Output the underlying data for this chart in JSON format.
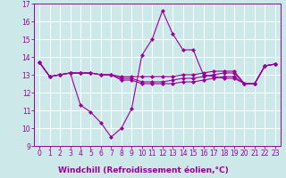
{
  "x": [
    0,
    1,
    2,
    3,
    4,
    5,
    6,
    7,
    8,
    9,
    10,
    11,
    12,
    13,
    14,
    15,
    16,
    17,
    18,
    19,
    20,
    21,
    22,
    23
  ],
  "line1": [
    13.7,
    12.9,
    13.0,
    13.1,
    11.3,
    10.9,
    10.3,
    9.5,
    10.0,
    11.1,
    14.1,
    15.0,
    16.6,
    15.3,
    14.4,
    14.4,
    13.0,
    12.9,
    12.8,
    12.8,
    12.5,
    12.5,
    13.5,
    13.6
  ],
  "line2": [
    13.7,
    12.9,
    13.0,
    13.1,
    13.1,
    13.1,
    13.0,
    13.0,
    12.9,
    12.9,
    12.9,
    12.9,
    12.9,
    12.9,
    13.0,
    13.0,
    13.1,
    13.2,
    13.2,
    13.2,
    12.5,
    12.5,
    13.5,
    13.6
  ],
  "line3": [
    13.7,
    12.9,
    13.0,
    13.1,
    13.1,
    13.1,
    13.0,
    13.0,
    12.8,
    12.8,
    12.6,
    12.6,
    12.6,
    12.7,
    12.8,
    12.8,
    12.9,
    13.0,
    13.1,
    13.1,
    12.5,
    12.5,
    13.5,
    13.6
  ],
  "line4": [
    13.7,
    12.9,
    13.0,
    13.1,
    13.1,
    13.1,
    13.0,
    13.0,
    12.7,
    12.7,
    12.5,
    12.5,
    12.5,
    12.5,
    12.6,
    12.6,
    12.7,
    12.8,
    12.9,
    12.9,
    12.5,
    12.5,
    13.5,
    13.6
  ],
  "color": "#990099",
  "background": "#cce8e8",
  "grid_color": "#ffffff",
  "xlabel": "Windchill (Refroidissement éolien,°C)",
  "xlim": [
    -0.5,
    23.5
  ],
  "ylim": [
    9,
    17
  ],
  "yticks": [
    9,
    10,
    11,
    12,
    13,
    14,
    15,
    16,
    17
  ],
  "xticks": [
    0,
    1,
    2,
    3,
    4,
    5,
    6,
    7,
    8,
    9,
    10,
    11,
    12,
    13,
    14,
    15,
    16,
    17,
    18,
    19,
    20,
    21,
    22,
    23
  ],
  "marker": "D",
  "markersize": 2.0,
  "linewidth": 0.8,
  "xlabel_fontsize": 6.5,
  "tick_fontsize": 5.5
}
